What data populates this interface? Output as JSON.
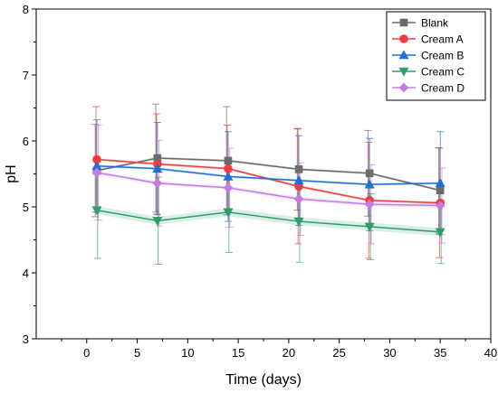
{
  "chart_data": {
    "type": "line",
    "title": "",
    "xlabel": "Time (days)",
    "ylabel": "pH",
    "xlim": [
      -5,
      40
    ],
    "ylim": [
      3,
      8
    ],
    "x_ticks": [
      0,
      5,
      10,
      15,
      20,
      25,
      30,
      35,
      40
    ],
    "y_ticks": [
      3,
      4,
      5,
      6,
      7,
      8
    ],
    "legend": "top-right",
    "grid": false,
    "series": [
      {
        "name": "Blank",
        "color": "#6b6b6b",
        "marker": "square",
        "x": [
          1,
          7,
          14,
          21,
          28,
          35
        ],
        "y": [
          5.55,
          5.74,
          5.7,
          5.57,
          5.51,
          5.25
        ],
        "err": [
          0.7,
          0.82,
          0.82,
          0.62,
          0.65,
          0.65
        ],
        "band": [
          0.02,
          0.02,
          0.02,
          0.02,
          0.02,
          0.02
        ]
      },
      {
        "name": "Cream A",
        "color": "#f03c3c",
        "marker": "circle",
        "x": [
          1,
          7,
          14,
          21,
          28,
          35
        ],
        "y": [
          5.72,
          5.65,
          5.58,
          5.31,
          5.1,
          5.06
        ],
        "err": [
          0.8,
          0.76,
          0.66,
          0.87,
          0.88,
          0.83
        ],
        "band": [
          0.02,
          0.02,
          0.02,
          0.02,
          0.02,
          0.02
        ]
      },
      {
        "name": "Cream B",
        "color": "#1f6fd6",
        "marker": "triangle-up",
        "x": [
          1,
          7,
          14,
          21,
          28,
          35
        ],
        "y": [
          5.62,
          5.58,
          5.46,
          5.4,
          5.34,
          5.36
        ],
        "err": [
          0.7,
          0.7,
          0.68,
          0.68,
          0.7,
          0.78
        ],
        "band": [
          0.02,
          0.02,
          0.02,
          0.02,
          0.02,
          0.02
        ]
      },
      {
        "name": "Cream C",
        "color": "#2e9e6a",
        "marker": "triangle-down",
        "x": [
          1,
          7,
          14,
          21,
          28,
          35
        ],
        "y": [
          4.95,
          4.79,
          4.92,
          4.78,
          4.7,
          4.62
        ],
        "err": [
          0.73,
          0.66,
          0.61,
          0.62,
          0.5,
          0.48
        ],
        "band": [
          0.06,
          0.06,
          0.06,
          0.06,
          0.06,
          0.06
        ]
      },
      {
        "name": "Cream D",
        "color": "#c57be3",
        "marker": "diamond",
        "x": [
          1,
          7,
          14,
          21,
          28,
          35
        ],
        "y": [
          5.52,
          5.36,
          5.29,
          5.12,
          5.04,
          5.02
        ],
        "err": [
          0.72,
          0.65,
          0.6,
          0.55,
          0.6,
          0.57
        ],
        "band": [
          0.03,
          0.03,
          0.03,
          0.03,
          0.03,
          0.03
        ]
      }
    ]
  }
}
